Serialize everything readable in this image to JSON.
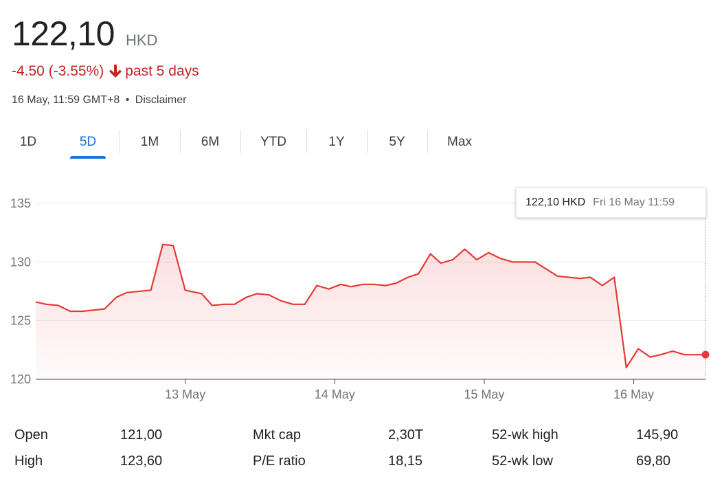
{
  "quote": {
    "price": "122,10",
    "currency": "HKD",
    "change": "-4.50 (-3.55%)",
    "period": "past 5 days",
    "timestamp": "16 May, 11:59 GMT+8",
    "separator": "•",
    "disclaimer": "Disclaimer",
    "down_color": "#c5221f",
    "arrow_icon": "arrow-down-icon"
  },
  "tabs": [
    {
      "label": "1D",
      "active": false
    },
    {
      "label": "5D",
      "active": true
    },
    {
      "label": "1M",
      "active": false
    },
    {
      "label": "6M",
      "active": false
    },
    {
      "label": "YTD",
      "active": false
    },
    {
      "label": "1Y",
      "active": false
    },
    {
      "label": "5Y",
      "active": false
    },
    {
      "label": "Max",
      "active": false
    }
  ],
  "tooltip": {
    "value": "122,10 HKD",
    "date": "Fri 16 May 11:59"
  },
  "chart_data": {
    "type": "area",
    "line_color": "#e53935",
    "fill_color": "#e53935",
    "ylim": [
      120,
      135
    ],
    "xlim": [
      0,
      4.48
    ],
    "x_unit": "trading days since start of 12 May session",
    "yticks": [
      {
        "value": 120,
        "label": "120"
      },
      {
        "value": 125,
        "label": "125"
      },
      {
        "value": 130,
        "label": "130"
      },
      {
        "value": 135,
        "label": "135"
      }
    ],
    "xticks": [
      {
        "value": 1,
        "label": "13 May"
      },
      {
        "value": 2,
        "label": "14 May"
      },
      {
        "value": 3,
        "label": "15 May"
      },
      {
        "value": 4,
        "label": "16 May"
      }
    ],
    "grid": true,
    "last_point_marker": true,
    "series": [
      {
        "x": [
          0.0,
          0.07,
          0.15,
          0.23,
          0.31,
          0.46,
          0.54,
          0.61,
          0.77,
          0.85,
          0.92,
          1.0,
          1.11,
          1.18,
          1.26,
          1.33,
          1.41,
          1.48,
          1.56,
          1.64,
          1.72,
          1.8,
          1.88,
          1.96,
          2.04,
          2.11,
          2.19,
          2.26,
          2.34,
          2.41,
          2.49,
          2.56,
          2.64,
          2.71,
          2.79,
          2.87,
          2.95,
          3.03,
          3.11,
          3.19,
          3.26,
          3.34,
          3.49,
          3.64,
          3.71,
          3.79,
          3.87,
          3.95,
          4.03,
          4.11,
          4.18,
          4.26,
          4.34,
          4.41,
          4.48
        ],
        "y": [
          126.6,
          126.4,
          126.3,
          125.8,
          125.8,
          126.0,
          127.0,
          127.4,
          127.6,
          131.5,
          131.4,
          127.6,
          127.3,
          126.3,
          126.4,
          126.4,
          127.0,
          127.3,
          127.2,
          126.7,
          126.4,
          126.4,
          128.0,
          127.7,
          128.1,
          127.9,
          128.1,
          128.1,
          128.0,
          128.2,
          128.7,
          129.0,
          130.7,
          129.9,
          130.2,
          131.1,
          130.2,
          130.8,
          130.3,
          130.0,
          130.0,
          130.0,
          128.8,
          128.6,
          128.7,
          128.0,
          128.7,
          121.0,
          122.6,
          121.9,
          122.1,
          122.4,
          122.1,
          122.1,
          122.1
        ]
      }
    ]
  },
  "stats": [
    {
      "label": "Open",
      "value": "121,00"
    },
    {
      "label": "High",
      "value": "123,60"
    },
    {
      "label": "Mkt cap",
      "value": "2,30T"
    },
    {
      "label": "P/E ratio",
      "value": "18,15"
    },
    {
      "label": "52-wk high",
      "value": "145,90"
    },
    {
      "label": "52-wk low",
      "value": "69,80"
    }
  ]
}
